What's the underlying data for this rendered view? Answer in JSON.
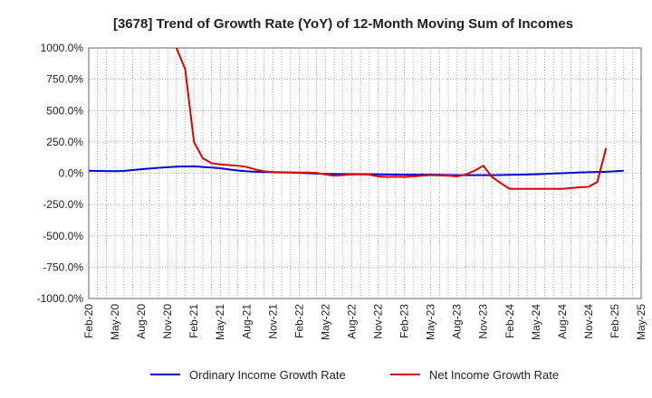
{
  "chart_data": {
    "type": "line",
    "title": "[3678]  Trend of Growth Rate (YoY) of 12-Month Moving Sum of Incomes",
    "xlabel": "",
    "ylabel": "",
    "ylim": [
      -1000,
      1000
    ],
    "yticks": [
      1000,
      750,
      500,
      250,
      0,
      -250,
      -500,
      -750,
      -1000
    ],
    "ytick_labels": [
      "1000.0%",
      "750.0%",
      "500.0%",
      "250.0%",
      "0.0%",
      "-250.0%",
      "-500.0%",
      "-750.0%",
      "-1000.0%"
    ],
    "x_categories": [
      "Feb-20",
      "Mar-20",
      "Apr-20",
      "May-20",
      "Jun-20",
      "Jul-20",
      "Aug-20",
      "Sep-20",
      "Oct-20",
      "Nov-20",
      "Dec-20",
      "Jan-21",
      "Feb-21",
      "Mar-21",
      "Apr-21",
      "May-21",
      "Jun-21",
      "Jul-21",
      "Aug-21",
      "Sep-21",
      "Oct-21",
      "Nov-21",
      "Dec-21",
      "Jan-22",
      "Feb-22",
      "Mar-22",
      "Apr-22",
      "May-22",
      "Jun-22",
      "Jul-22",
      "Aug-22",
      "Sep-22",
      "Oct-22",
      "Nov-22",
      "Dec-22",
      "Jan-23",
      "Feb-23",
      "Mar-23",
      "Apr-23",
      "May-23",
      "Jun-23",
      "Jul-23",
      "Aug-23",
      "Sep-23",
      "Oct-23",
      "Nov-23",
      "Dec-23",
      "Jan-24",
      "Feb-24",
      "Mar-24",
      "Apr-24",
      "May-24",
      "Jun-24",
      "Jul-24",
      "Aug-24",
      "Sep-24",
      "Oct-24",
      "Nov-24",
      "Dec-24",
      "Jan-25",
      "Feb-25",
      "Mar-25",
      "Apr-25",
      "May-25"
    ],
    "x_tick_labels": [
      "Feb-20",
      "May-20",
      "Aug-20",
      "Nov-20",
      "Feb-21",
      "May-21",
      "Aug-21",
      "Nov-21",
      "Feb-22",
      "May-22",
      "Aug-22",
      "Nov-22",
      "Feb-23",
      "May-23",
      "Aug-23",
      "Nov-23",
      "Feb-24",
      "May-24",
      "Aug-24",
      "Nov-24",
      "Feb-25",
      "May-25"
    ],
    "grid": true,
    "legend_position": "bottom",
    "series": [
      {
        "name": "Ordinary Income Growth Rate",
        "color": "#0000cc",
        "values": [
          20,
          18,
          17,
          16,
          18,
          25,
          32,
          38,
          43,
          48,
          52,
          54,
          55,
          50,
          45,
          40,
          30,
          22,
          15,
          12,
          10,
          8,
          6,
          5,
          3,
          0,
          -3,
          -5,
          -6,
          -7,
          -7,
          -7,
          -8,
          -9,
          -10,
          -11,
          -12,
          -12,
          -12,
          -12,
          -13,
          -14,
          -15,
          -15,
          -15,
          -15,
          -15,
          -14,
          -13,
          -12,
          -10,
          -8,
          -5,
          -2,
          0,
          3,
          6,
          8,
          10,
          12,
          15,
          20,
          null,
          null
        ]
      },
      {
        "name": "Net Income Growth Rate",
        "color": "#dd0000",
        "values": [
          null,
          null,
          null,
          null,
          null,
          null,
          null,
          null,
          null,
          null,
          1000,
          830,
          250,
          120,
          80,
          70,
          65,
          60,
          50,
          30,
          15,
          10,
          8,
          6,
          5,
          5,
          3,
          -10,
          -20,
          -15,
          -10,
          -8,
          -12,
          -25,
          -30,
          -28,
          -30,
          -25,
          -20,
          -15,
          -18,
          -20,
          -25,
          -10,
          20,
          60,
          -30,
          -80,
          -125,
          -125,
          -125,
          -125,
          -125,
          -125,
          -125,
          -118,
          -112,
          -108,
          -70,
          200,
          null,
          null,
          null,
          null
        ]
      }
    ]
  }
}
